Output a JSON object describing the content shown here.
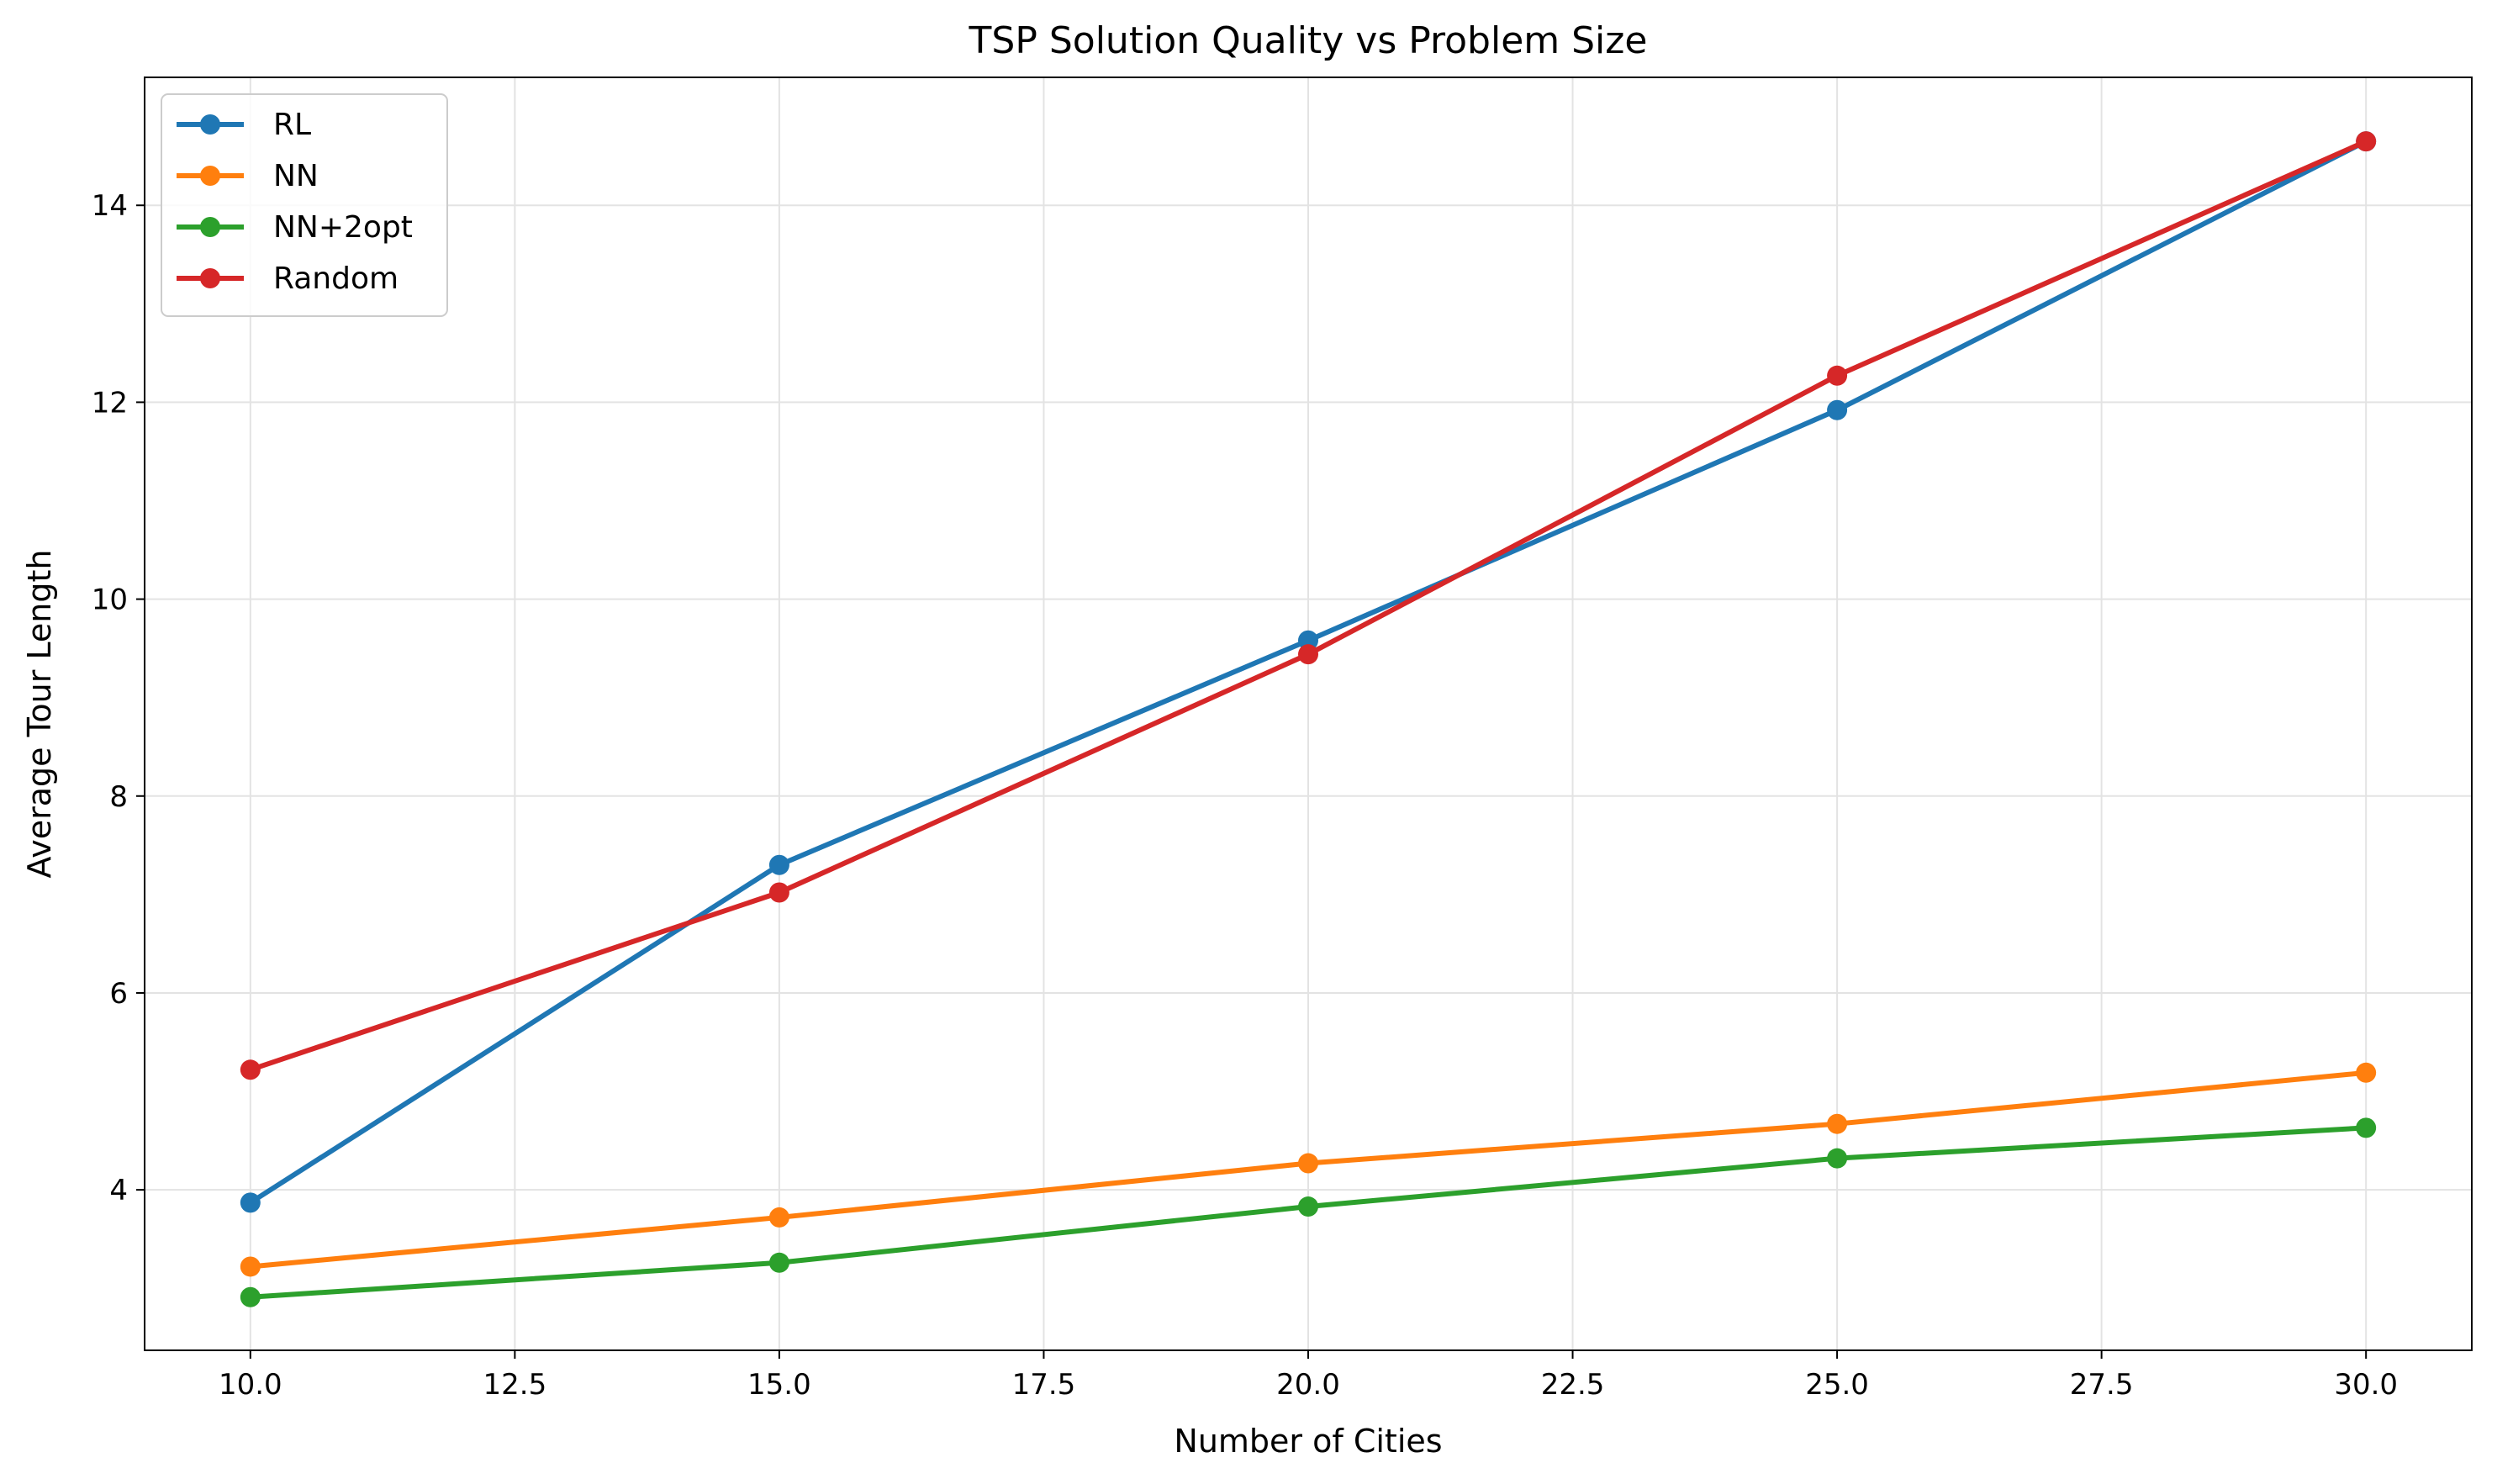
{
  "chart_data": {
    "type": "line",
    "title": "TSP Solution Quality vs Problem Size",
    "xlabel": "Number of Cities",
    "ylabel": "Average Tour Length",
    "x": [
      10,
      15,
      20,
      25,
      30
    ],
    "xlim": [
      9,
      31
    ],
    "ylim": [
      2.37,
      15.3
    ],
    "xticks": [
      10.0,
      12.5,
      15.0,
      17.5,
      20.0,
      22.5,
      25.0,
      27.5,
      30.0
    ],
    "xtick_labels": [
      "10.0",
      "12.5",
      "15.0",
      "17.5",
      "20.0",
      "22.5",
      "25.0",
      "27.5",
      "30.0"
    ],
    "yticks": [
      4,
      6,
      8,
      10,
      12,
      14
    ],
    "ytick_labels": [
      "4",
      "6",
      "8",
      "10",
      "12",
      "14"
    ],
    "grid": true,
    "legend_position": "top-left",
    "series": [
      {
        "name": "RL",
        "color": "#1f77b4",
        "values": [
          3.87,
          7.3,
          9.58,
          11.92,
          14.65
        ]
      },
      {
        "name": "NN",
        "color": "#ff7f0e",
        "values": [
          3.22,
          3.72,
          4.27,
          4.67,
          5.19
        ]
      },
      {
        "name": "NN+2opt",
        "color": "#2ca02c",
        "values": [
          2.91,
          3.26,
          3.83,
          4.32,
          4.63
        ]
      },
      {
        "name": "Random",
        "color": "#d62728",
        "values": [
          5.22,
          7.02,
          9.44,
          12.27,
          14.65
        ]
      }
    ]
  }
}
